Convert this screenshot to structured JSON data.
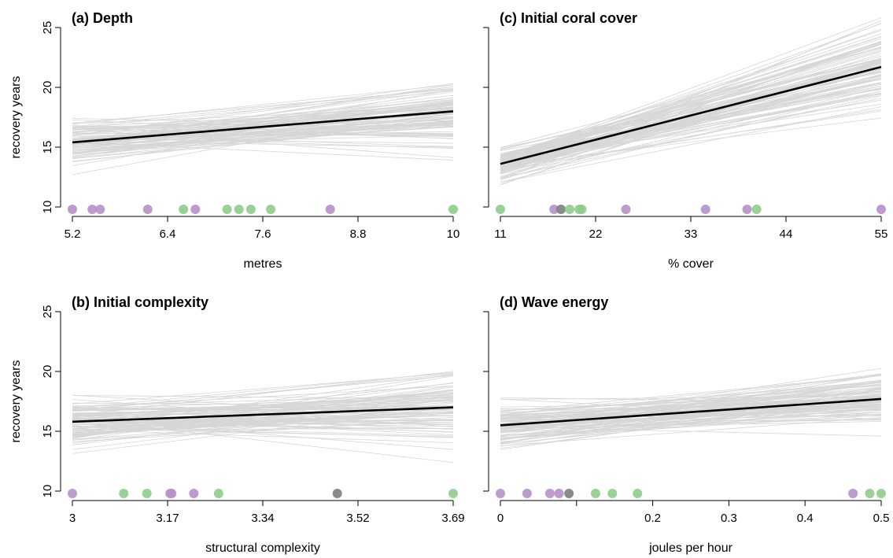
{
  "figure": {
    "colors": {
      "line_bootstrap": "#d6d6d6",
      "line_fit": "#000000",
      "point_purple": "#b690c8",
      "point_green": "#8fcc8c",
      "point_dark": "#7e7e7e"
    }
  },
  "chart_data": [
    {
      "id": "a",
      "type": "line",
      "title": "(a) Depth",
      "xlabel": "metres",
      "ylabel": "recovery years",
      "xticks": [
        5.2,
        6.4,
        7.6,
        8.8,
        10
      ],
      "xtick_labels": [
        "5.2",
        "6.4",
        "7.6",
        "8.8",
        "10"
      ],
      "yticks": [
        10,
        15,
        20,
        25
      ],
      "yticks_shown": true,
      "xlim": [
        5.2,
        10
      ],
      "ylim": [
        10,
        25
      ],
      "grid": false,
      "fit_line": {
        "x": [
          5.2,
          10
        ],
        "y": [
          15.4,
          18.0
        ]
      },
      "bootstrap": {
        "count": 100,
        "center_y": [
          15.4,
          18.0
        ],
        "spread_start": 1.4,
        "spread_end": 2.6
      },
      "points": [
        {
          "x": 5.2,
          "y": 9.8,
          "group": "purple"
        },
        {
          "x": 5.45,
          "y": 9.8,
          "group": "purple"
        },
        {
          "x": 5.55,
          "y": 9.8,
          "group": "purple"
        },
        {
          "x": 6.15,
          "y": 9.8,
          "group": "purple"
        },
        {
          "x": 6.6,
          "y": 9.8,
          "group": "green"
        },
        {
          "x": 6.75,
          "y": 9.8,
          "group": "purple"
        },
        {
          "x": 7.15,
          "y": 9.8,
          "group": "green"
        },
        {
          "x": 7.3,
          "y": 9.8,
          "group": "green"
        },
        {
          "x": 7.45,
          "y": 9.8,
          "group": "green"
        },
        {
          "x": 7.7,
          "y": 9.8,
          "group": "green"
        },
        {
          "x": 8.45,
          "y": 9.8,
          "group": "purple"
        },
        {
          "x": 10,
          "y": 9.8,
          "group": "green"
        }
      ]
    },
    {
      "id": "c",
      "type": "line",
      "title": "(c) Initial coral cover",
      "xlabel": "% cover",
      "ylabel": "",
      "xticks": [
        11,
        22,
        33,
        44,
        55
      ],
      "xtick_labels": [
        "11",
        "22",
        "33",
        "44",
        "55"
      ],
      "yticks": [
        10,
        15,
        20,
        25
      ],
      "yticks_shown": false,
      "xlim": [
        11,
        55
      ],
      "ylim": [
        10,
        25
      ],
      "grid": false,
      "fit_line": {
        "x": [
          11,
          55
        ],
        "y": [
          13.6,
          21.7
        ]
      },
      "bootstrap": {
        "count": 100,
        "center_y": [
          13.6,
          21.7
        ],
        "spread_start": 1.3,
        "spread_end": 3.2
      },
      "points": [
        {
          "x": 11,
          "y": 9.8,
          "group": "green"
        },
        {
          "x": 17.2,
          "y": 9.8,
          "group": "purple"
        },
        {
          "x": 18.0,
          "y": 9.8,
          "group": "dark"
        },
        {
          "x": 19.0,
          "y": 9.8,
          "group": "green"
        },
        {
          "x": 20.1,
          "y": 9.8,
          "group": "green"
        },
        {
          "x": 20.4,
          "y": 9.8,
          "group": "green"
        },
        {
          "x": 25.5,
          "y": 9.8,
          "group": "purple"
        },
        {
          "x": 34.7,
          "y": 9.8,
          "group": "purple"
        },
        {
          "x": 39.5,
          "y": 9.8,
          "group": "purple"
        },
        {
          "x": 40.6,
          "y": 9.8,
          "group": "green"
        },
        {
          "x": 55,
          "y": 9.8,
          "group": "purple"
        }
      ]
    },
    {
      "id": "b",
      "type": "line",
      "title": "(b) Initial complexity",
      "xlabel": "structural complexity",
      "ylabel": "recovery years",
      "xticks": [
        3,
        3.1725,
        3.345,
        3.5175,
        3.69
      ],
      "xtick_labels": [
        "3",
        "3.17",
        "3.34",
        "3.52",
        "3.69"
      ],
      "yticks": [
        10,
        15,
        20,
        25
      ],
      "yticks_shown": true,
      "xlim": [
        3,
        3.69
      ],
      "ylim": [
        10,
        25
      ],
      "grid": false,
      "fit_line": {
        "x": [
          3,
          3.69
        ],
        "y": [
          15.8,
          17.0
        ]
      },
      "bootstrap": {
        "count": 100,
        "center_y": [
          15.8,
          17.0
        ],
        "spread_start": 1.8,
        "spread_end": 2.6
      },
      "points": [
        {
          "x": 3.0,
          "y": 9.8,
          "group": "purple"
        },
        {
          "x": 3.093,
          "y": 9.8,
          "group": "green"
        },
        {
          "x": 3.135,
          "y": 9.8,
          "group": "green"
        },
        {
          "x": 3.177,
          "y": 9.8,
          "group": "purple"
        },
        {
          "x": 3.18,
          "y": 9.8,
          "group": "purple"
        },
        {
          "x": 3.22,
          "y": 9.8,
          "group": "purple"
        },
        {
          "x": 3.265,
          "y": 9.8,
          "group": "green"
        },
        {
          "x": 3.48,
          "y": 9.8,
          "group": "dark"
        },
        {
          "x": 3.69,
          "y": 9.8,
          "group": "green"
        }
      ]
    },
    {
      "id": "d",
      "type": "line",
      "title": "(d) Wave energy",
      "xlabel": "joules per hour",
      "ylabel": "",
      "xticks": [
        0,
        0.1,
        0.2,
        0.3,
        0.4,
        0.5
      ],
      "xtick_labels": [
        "0",
        "",
        "0.2",
        "0.3",
        "0.4",
        "0.5"
      ],
      "yticks": [
        10,
        15,
        20,
        25
      ],
      "yticks_shown": false,
      "xlim": [
        0,
        0.5
      ],
      "ylim": [
        10,
        25
      ],
      "grid": false,
      "fit_line": {
        "x": [
          0,
          0.5
        ],
        "y": [
          15.5,
          17.7
        ]
      },
      "bootstrap": {
        "count": 100,
        "center_y": [
          15.5,
          17.7
        ],
        "spread_start": 1.7,
        "spread_end": 2.2
      },
      "points": [
        {
          "x": 0.0,
          "y": 9.8,
          "group": "purple"
        },
        {
          "x": 0.035,
          "y": 9.8,
          "group": "purple"
        },
        {
          "x": 0.065,
          "y": 9.8,
          "group": "purple"
        },
        {
          "x": 0.077,
          "y": 9.8,
          "group": "purple"
        },
        {
          "x": 0.09,
          "y": 9.8,
          "group": "dark"
        },
        {
          "x": 0.125,
          "y": 9.8,
          "group": "green"
        },
        {
          "x": 0.147,
          "y": 9.8,
          "group": "green"
        },
        {
          "x": 0.18,
          "y": 9.8,
          "group": "green"
        },
        {
          "x": 0.463,
          "y": 9.8,
          "group": "purple"
        },
        {
          "x": 0.485,
          "y": 9.8,
          "group": "green"
        },
        {
          "x": 0.5,
          "y": 9.8,
          "group": "green"
        }
      ]
    }
  ]
}
